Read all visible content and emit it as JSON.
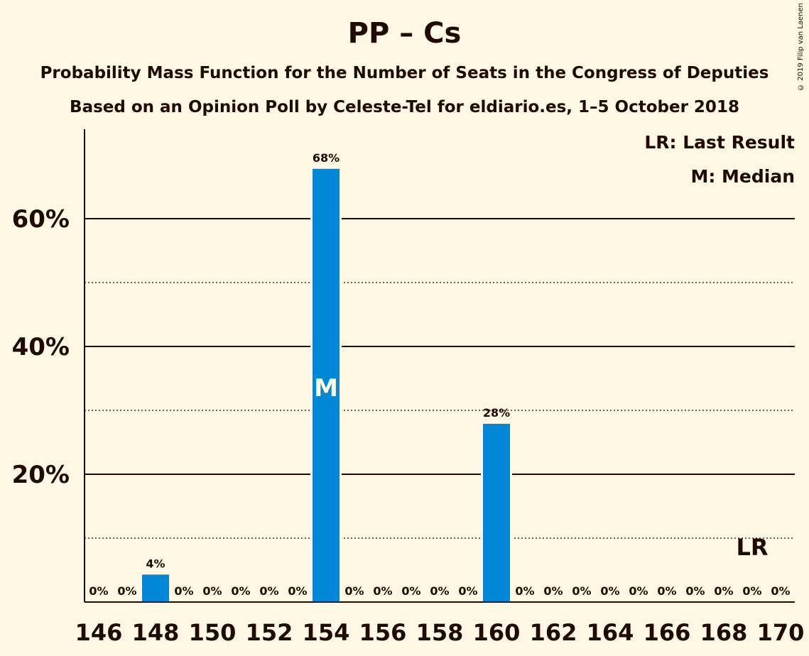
{
  "chart_data": {
    "type": "bar",
    "title": "PP – Cs",
    "subtitle": "Probability Mass Function for the Number of Seats in the Congress of Deputies",
    "subtitle2": "Based on an Opinion Poll by Celeste-Tel for eldiario.es, 1–5 October 2018",
    "copyright": "© 2019 Filip van Laenen",
    "legend": {
      "lr": "LR: Last Result",
      "median": "M: Median"
    },
    "categories": [
      146,
      147,
      148,
      149,
      150,
      151,
      152,
      153,
      154,
      155,
      156,
      157,
      158,
      159,
      160,
      161,
      162,
      163,
      164,
      165,
      166,
      167,
      168,
      169,
      170
    ],
    "values": [
      0,
      0,
      4.3,
      0,
      0,
      0,
      0,
      0,
      67.8,
      0,
      0,
      0,
      0,
      0,
      27.9,
      0,
      0,
      0,
      0,
      0,
      0,
      0,
      0,
      0,
      0
    ],
    "labels": [
      "0%",
      "0%",
      "4%",
      "0%",
      "0%",
      "0%",
      "0%",
      "0%",
      "68%",
      "0%",
      "0%",
      "0%",
      "0%",
      "0%",
      "28%",
      "0%",
      "0%",
      "0%",
      "0%",
      "0%",
      "0%",
      "0%",
      "0%",
      "0%",
      "0%"
    ],
    "x_tick_labels": [
      "146",
      "148",
      "150",
      "152",
      "154",
      "156",
      "158",
      "160",
      "162",
      "164",
      "166",
      "168",
      "170"
    ],
    "y_ticks_major": [
      20,
      40,
      60
    ],
    "y_tick_labels": [
      "20%",
      "40%",
      "60%"
    ],
    "y_ticks_minor": [
      10,
      30,
      50
    ],
    "ylim": [
      0,
      74
    ],
    "median_seat": 154,
    "median_marker": "M",
    "last_result_seat": 169,
    "last_result_marker": "LR",
    "bar_color": "#0087d6",
    "background": "#fef8e5",
    "text_color": "#200a00",
    "grid": true,
    "legend_position": "top-right"
  }
}
